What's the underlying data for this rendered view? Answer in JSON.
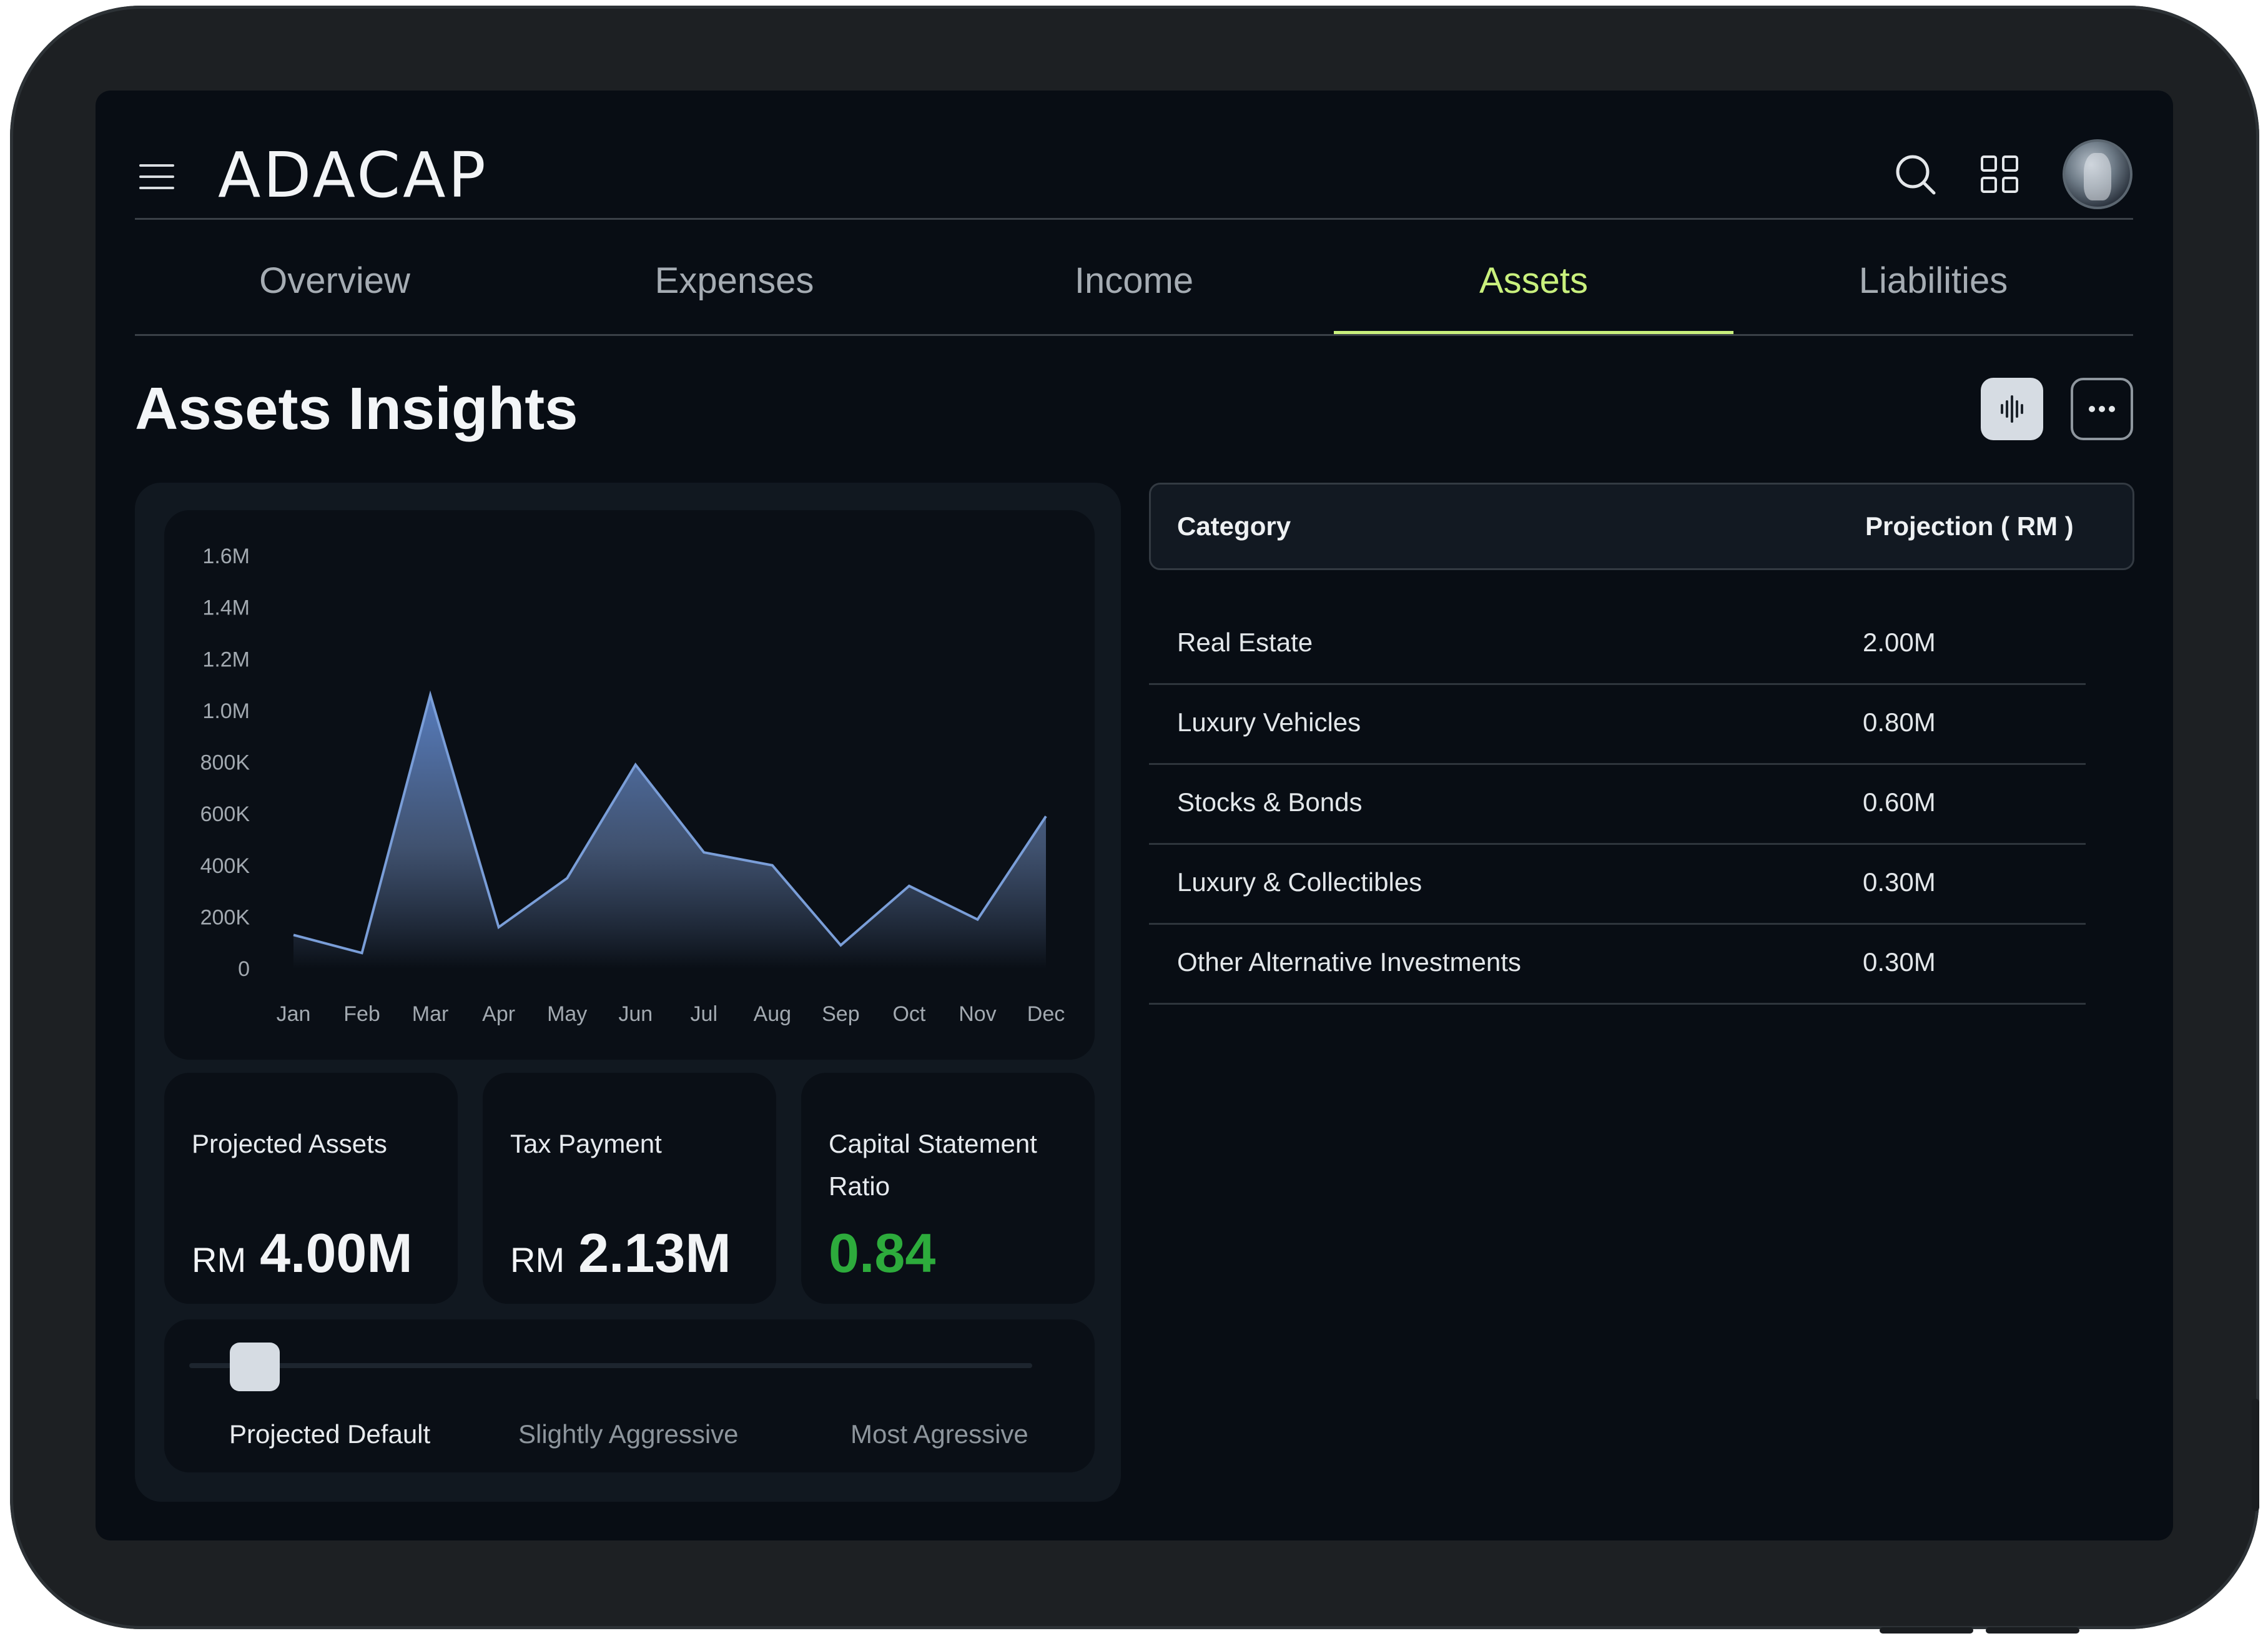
{
  "app": {
    "logo_text": "ADACAP"
  },
  "tabs": [
    "Overview",
    "Expenses",
    "Income",
    "Assets",
    "Liabilities"
  ],
  "active_tab": "Assets",
  "page": {
    "title": "Assets Insights"
  },
  "icons": {
    "menu": "hamburger-menu-icon",
    "search": "search-icon",
    "apps": "grid-icon",
    "chart_toggle": "waveform-icon",
    "more": "more-horizontal-icon"
  },
  "colors": {
    "background": "#080d14",
    "accent": "#c9f07d",
    "positive": "#2dab3c",
    "area_top": "#5b82c6"
  },
  "chart_data": {
    "type": "area",
    "categories": [
      "Jan",
      "Feb",
      "Mar",
      "Apr",
      "May",
      "Jun",
      "Jul",
      "Aug",
      "Sep",
      "Oct",
      "Nov",
      "Dec"
    ],
    "values": [
      130000,
      60000,
      1060000,
      160000,
      350000,
      790000,
      450000,
      400000,
      90000,
      320000,
      190000,
      590000
    ],
    "y_ticks": [
      "0",
      "200K",
      "400K",
      "600K",
      "800K",
      "1.0M",
      "1.2M",
      "1.4M",
      "1.6M"
    ],
    "ylim": [
      0,
      1600000
    ],
    "grid": false
  },
  "stats": [
    {
      "label": "Projected Assets",
      "currency": "RM",
      "value": "4.00M"
    },
    {
      "label": "Tax Payment",
      "currency": "RM",
      "value": "2.13M"
    },
    {
      "label": "Capital Statement Ratio",
      "value": "0.84"
    }
  ],
  "risk_slider": {
    "options": [
      "Projected Default",
      "Slightly Aggressive",
      "Most Agressive"
    ],
    "selected": "Projected Default"
  },
  "table": {
    "headers": {
      "category": "Category",
      "projection": "Projection ( RM )"
    },
    "rows": [
      {
        "category": "Real Estate",
        "projection": "2.00M"
      },
      {
        "category": "Luxury Vehicles",
        "projection": "0.80M"
      },
      {
        "category": "Stocks & Bonds",
        "projection": "0.60M"
      },
      {
        "category": "Luxury & Collectibles",
        "projection": "0.30M"
      },
      {
        "category": "Other Alternative Investments",
        "projection": "0.30M"
      }
    ]
  }
}
